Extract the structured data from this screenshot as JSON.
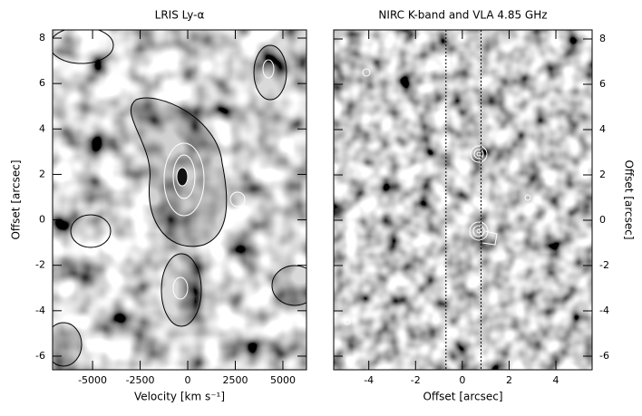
{
  "chart_data": [
    {
      "type": "image",
      "title": "LRIS Ly-α",
      "x_label": "Velocity [km s⁻¹]",
      "y_label": "Offset [arcsec]",
      "xlim": [
        -7100,
        6240
      ],
      "ylim": [
        -6.6,
        8.36
      ],
      "xticks": [
        -5000,
        -2500,
        0,
        2500,
        5000
      ],
      "yticks": [
        -6,
        -4,
        -2,
        0,
        2,
        4,
        6,
        8
      ],
      "y_axis_side": "left"
    },
    {
      "type": "image",
      "title": "NIRC K-band and VLA 4.85 GHz",
      "x_label": "Offset [arcsec]",
      "y_label": "Offset [arcsec]",
      "xlim": [
        -5.5,
        5.55
      ],
      "ylim": [
        -6.6,
        8.4
      ],
      "xticks": [
        -4,
        -2,
        0,
        2,
        4
      ],
      "yticks": [
        -6,
        -4,
        -2,
        0,
        2,
        4,
        6,
        8
      ],
      "y_axis_side": "right",
      "vlines": [
        -0.7,
        0.8
      ]
    }
  ]
}
